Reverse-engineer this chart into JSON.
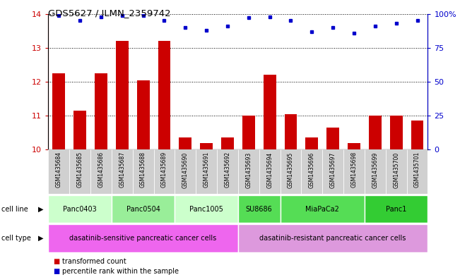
{
  "title": "GDS5627 / ILMN_2359742",
  "samples": [
    "GSM1435684",
    "GSM1435685",
    "GSM1435686",
    "GSM1435687",
    "GSM1435688",
    "GSM1435689",
    "GSM1435690",
    "GSM1435691",
    "GSM1435692",
    "GSM1435693",
    "GSM1435694",
    "GSM1435695",
    "GSM1435696",
    "GSM1435697",
    "GSM1435698",
    "GSM1435699",
    "GSM1435700",
    "GSM1435701"
  ],
  "transformed_count": [
    12.25,
    11.15,
    12.25,
    13.2,
    12.05,
    13.2,
    10.35,
    10.2,
    10.35,
    11.0,
    12.2,
    11.05,
    10.35,
    10.65,
    10.2,
    11.0,
    11.0,
    10.85
  ],
  "percentile_rank": [
    99,
    95,
    98,
    99,
    99,
    95,
    90,
    88,
    91,
    97,
    98,
    95,
    87,
    90,
    86,
    91,
    93,
    95
  ],
  "ylim_left": [
    10,
    14
  ],
  "ylim_right": [
    0,
    100
  ],
  "yticks_left": [
    10,
    11,
    12,
    13,
    14
  ],
  "yticks_right": [
    0,
    25,
    50,
    75,
    100
  ],
  "bar_color": "#cc0000",
  "dot_color": "#0000cc",
  "bar_width": 0.6,
  "cell_lines": [
    {
      "label": "Panc0403",
      "start": 0,
      "end": 3,
      "color": "#ccffcc"
    },
    {
      "label": "Panc0504",
      "start": 3,
      "end": 6,
      "color": "#99ee99"
    },
    {
      "label": "Panc1005",
      "start": 6,
      "end": 9,
      "color": "#ccffcc"
    },
    {
      "label": "SU8686",
      "start": 9,
      "end": 11,
      "color": "#55dd55"
    },
    {
      "label": "MiaPaCa2",
      "start": 11,
      "end": 15,
      "color": "#55dd55"
    },
    {
      "label": "Panc1",
      "start": 15,
      "end": 18,
      "color": "#33cc33"
    }
  ],
  "cell_types": [
    {
      "label": "dasatinib-sensitive pancreatic cancer cells",
      "start": 0,
      "end": 9,
      "color": "#ee66ee"
    },
    {
      "label": "dasatinib-resistant pancreatic cancer cells",
      "start": 9,
      "end": 18,
      "color": "#dd99dd"
    }
  ],
  "legend_items": [
    {
      "label": "transformed count",
      "color": "#cc0000"
    },
    {
      "label": "percentile rank within the sample",
      "color": "#0000cc"
    }
  ],
  "left_axis_color": "#cc0000",
  "right_axis_color": "#0000cc",
  "bar_bottom": 10,
  "fig_width": 6.51,
  "fig_height": 3.93,
  "fig_dpi": 100
}
